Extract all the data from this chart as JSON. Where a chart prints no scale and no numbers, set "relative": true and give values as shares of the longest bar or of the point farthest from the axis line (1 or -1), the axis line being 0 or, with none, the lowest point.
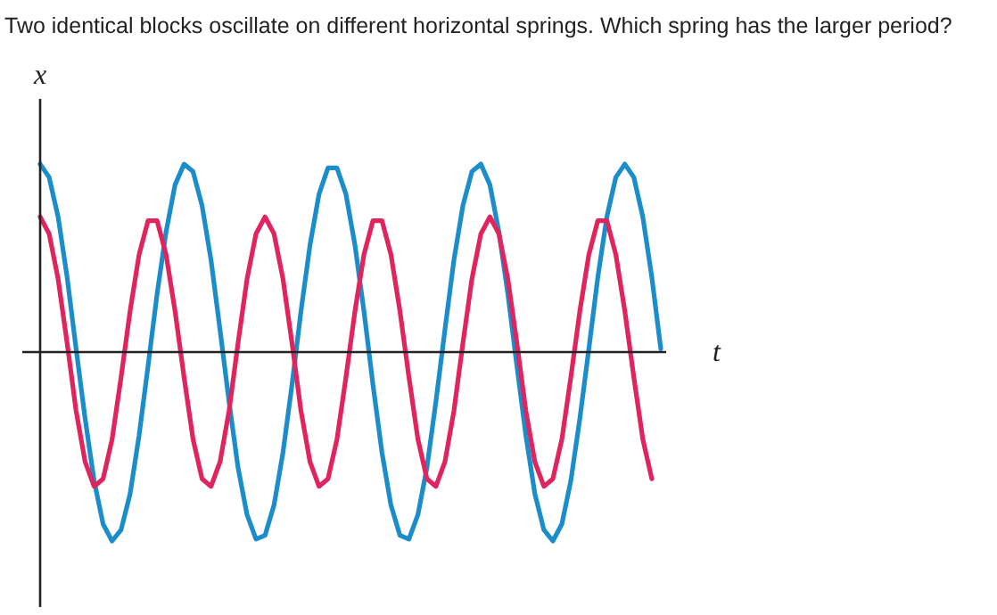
{
  "chart_data": {
    "type": "line",
    "title": "Two identical blocks oscillate on different horizontal springs. Which spring has the larger period?",
    "xlabel": "t",
    "ylabel": "x",
    "relative": true,
    "categories": [
      null,
      null,
      null,
      null,
      null,
      null,
      null,
      null,
      null,
      null,
      null,
      null,
      null,
      null,
      null,
      null,
      null,
      null,
      null,
      null,
      null,
      null,
      null,
      null,
      null,
      null,
      null,
      null,
      null,
      null,
      null,
      null,
      null,
      null,
      null,
      null,
      null,
      null,
      null,
      null,
      null,
      null,
      null,
      null,
      null,
      null,
      null,
      null,
      null,
      null,
      null,
      null,
      null,
      null,
      null,
      null,
      null,
      null,
      null,
      null,
      null,
      null,
      null,
      null,
      null,
      null,
      null,
      null,
      null,
      null
    ],
    "series": [
      {
        "color": "#1b8dcb",
        "values": [
          1,
          0.93,
          0.72,
          0.4,
          0.02,
          -0.35,
          -0.68,
          -0.91,
          -1,
          -0.94,
          -0.75,
          -0.44,
          -0.07,
          0.31,
          0.64,
          0.89,
          1,
          0.96,
          0.78,
          0.49,
          0.12,
          -0.26,
          -0.61,
          -0.86,
          -0.99,
          -0.97,
          -0.81,
          -0.53,
          -0.17,
          0.22,
          0.57,
          0.84,
          0.98,
          0.98,
          0.84,
          0.57,
          0.22,
          -0.17,
          -0.53,
          -0.81,
          -0.97,
          -0.99,
          -0.86,
          -0.61,
          -0.26,
          0.12,
          0.49,
          0.78,
          0.96,
          1,
          0.89,
          0.64,
          0.31,
          -0.07,
          -0.44,
          -0.75,
          -0.94,
          -1,
          -0.91,
          -0.68,
          -0.35,
          0.02,
          0.4,
          0.72,
          0.93,
          1,
          0.93,
          0.72,
          0.4,
          0.02
        ]
      },
      {
        "color": "#e0245e",
        "values": [
          0.72,
          0.63,
          0.39,
          0.05,
          -0.31,
          -0.58,
          -0.71,
          -0.67,
          -0.46,
          -0.13,
          0.22,
          0.52,
          0.7,
          0.7,
          0.52,
          0.22,
          -0.13,
          -0.46,
          -0.67,
          -0.71,
          -0.58,
          -0.31,
          0.05,
          0.39,
          0.63,
          0.72,
          0.63,
          0.39,
          0.05,
          -0.31,
          -0.58,
          -0.71,
          -0.67,
          -0.46,
          -0.13,
          0.22,
          0.52,
          0.7,
          0.7,
          0.52,
          0.22,
          -0.13,
          -0.46,
          -0.67,
          -0.71,
          -0.58,
          -0.31,
          0.05,
          0.39,
          0.63,
          0.72,
          0.63,
          0.39,
          0.05,
          -0.31,
          -0.58,
          -0.71,
          -0.67,
          -0.46,
          -0.13,
          0.22,
          0.52,
          0.7,
          0.7,
          0.52,
          0.22,
          -0.13,
          -0.46,
          -0.67,
          null
        ]
      }
    ]
  }
}
